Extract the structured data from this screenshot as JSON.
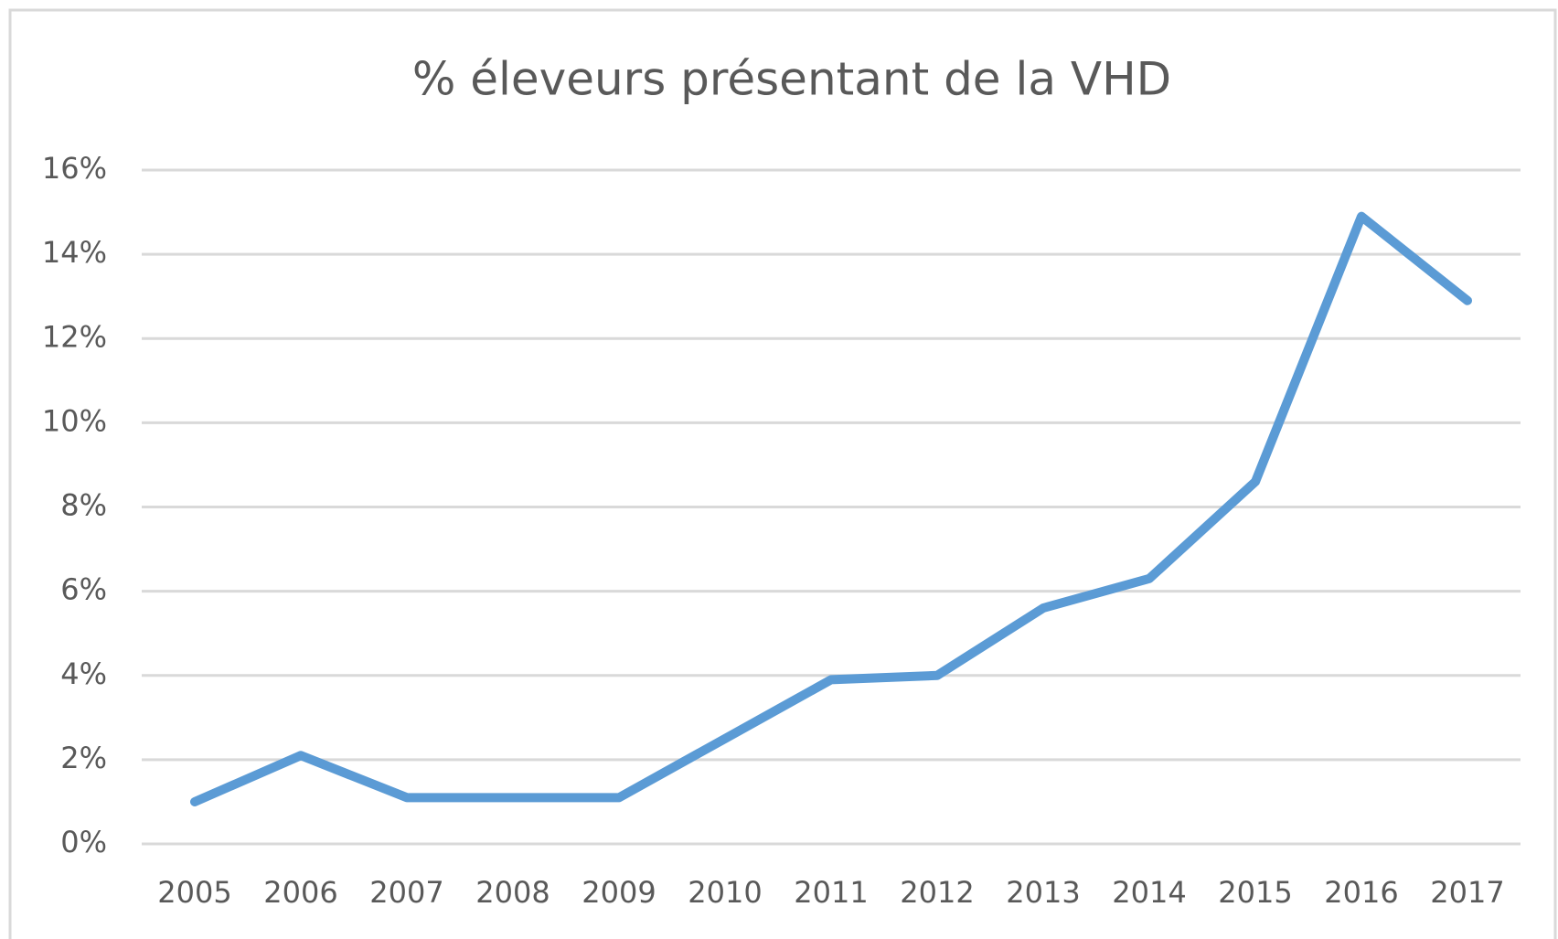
{
  "chart_data": {
    "type": "line",
    "title": "% éleveurs présentant de la VHD",
    "categories": [
      "2005",
      "2006",
      "2007",
      "2008",
      "2009",
      "2010",
      "2011",
      "2012",
      "2013",
      "2014",
      "2015",
      "2016",
      "2017"
    ],
    "series": [
      {
        "color": "#5b9bd5",
        "values": [
          1.0,
          2.1,
          1.1,
          1.1,
          1.1,
          2.5,
          3.9,
          4.0,
          5.6,
          6.3,
          8.6,
          14.9,
          12.9
        ]
      }
    ],
    "ylim": [
      0,
      16
    ],
    "yticks": [
      {
        "value": 0,
        "label": "0%"
      },
      {
        "value": 2,
        "label": "2%"
      },
      {
        "value": 4,
        "label": "4%"
      },
      {
        "value": 6,
        "label": "6%"
      },
      {
        "value": 8,
        "label": "8%"
      },
      {
        "value": 10,
        "label": "10%"
      },
      {
        "value": 12,
        "label": "12%"
      },
      {
        "value": 14,
        "label": "14%"
      },
      {
        "value": 16,
        "label": "16%"
      }
    ],
    "grid": true
  }
}
